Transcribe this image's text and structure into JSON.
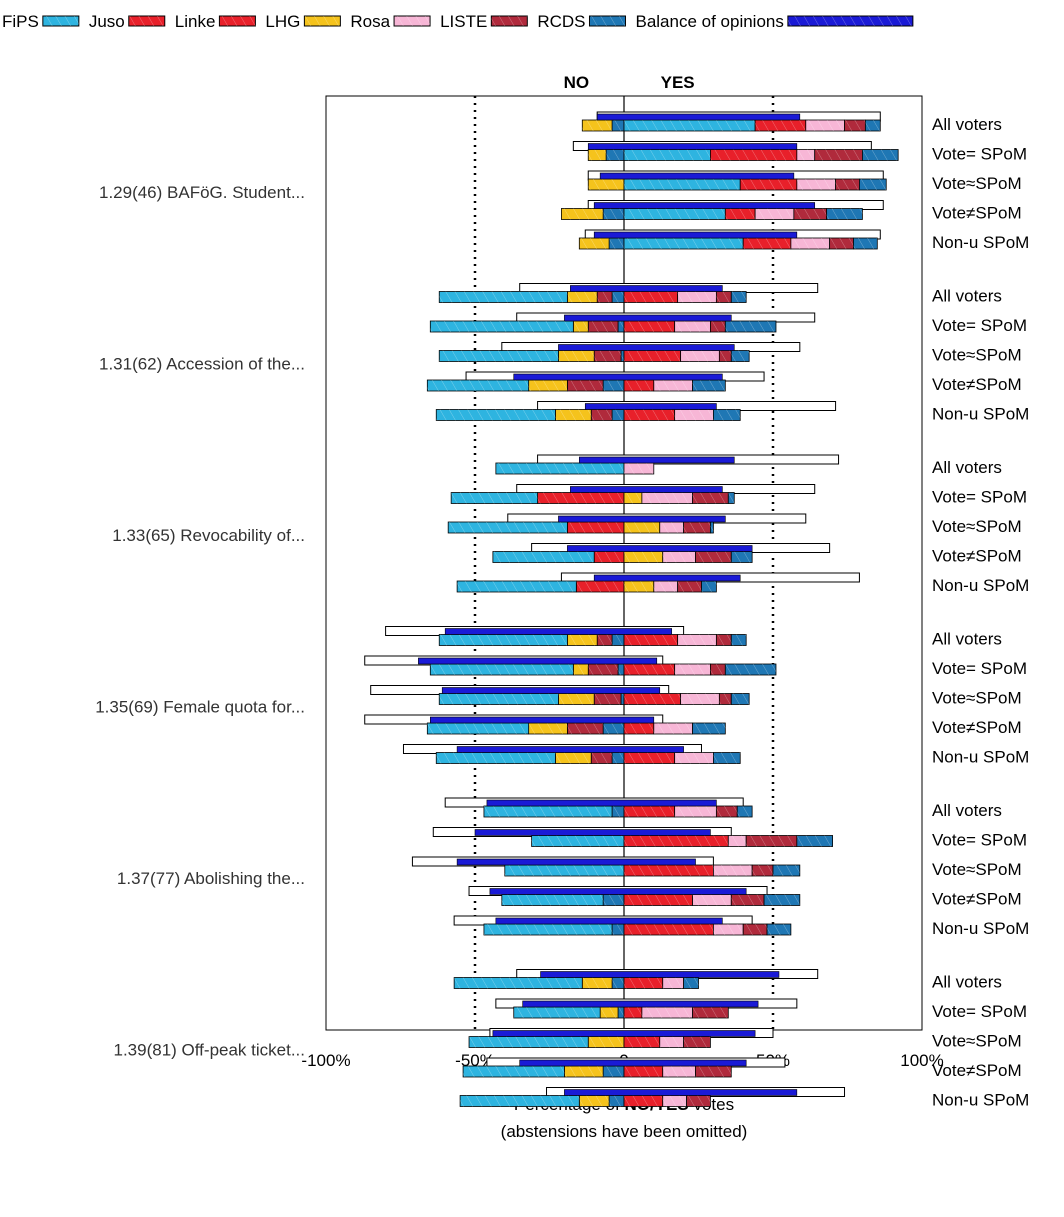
{
  "legend": [
    {
      "label": "FiPS",
      "color": "#2eb4e0"
    },
    {
      "label": "Juso",
      "color": "#e8202a"
    },
    {
      "label": "Linke",
      "color": "#e8202a"
    },
    {
      "label": "LHG",
      "color": "#f5c31c"
    },
    {
      "label": "Rosa",
      "color": "#f7b6d6"
    },
    {
      "label": "LISTE",
      "color": "#b02a3c"
    },
    {
      "label": "RCDS",
      "color": "#1f77b4"
    },
    {
      "label": "Balance of opinions",
      "color": "#1a1ad6"
    }
  ],
  "chart_data": {
    "type": "bar",
    "orientation": "horizontal-diverging-stacked",
    "x_label_pre": "Percentage of",
    "x_label_bold": "NO/YES",
    "x_label_post": "votes",
    "x_sublabel": "(abstensions have been omitted)",
    "no_label": "NO",
    "yes_label": "YES",
    "xlim": [
      -100,
      100
    ],
    "x_ticks": [
      {
        "value": -100,
        "label": "-100%"
      },
      {
        "value": -50,
        "label": "-50%"
      },
      {
        "value": 0,
        "label": "0"
      },
      {
        "value": 50,
        "label": "50%"
      },
      {
        "value": 100,
        "label": "100%"
      }
    ],
    "reference_lines": [
      -50,
      50
    ],
    "group_order": [
      "FiPS",
      "Juso",
      "Linke",
      "LHG",
      "Rosa",
      "LISTE",
      "RCDS"
    ],
    "questions": [
      {
        "label": "1.29(46) BAFöG. Student...",
        "rows": [
          {
            "label": "All voters",
            "no": [
              0,
              0,
              0,
              10,
              0,
              0,
              4
            ],
            "yes": [
              44,
              0,
              17,
              0,
              0,
              0,
              0
            ],
            "yes_b": [
              0,
              0,
              0,
              0,
              0,
              0,
              0
            ],
            "yes_c": [
              0,
              0,
              0,
              0,
              0,
              0,
              0
            ],
            "yes_full": [
              44,
              0,
              17,
              0,
              13,
              7,
              5
            ],
            "outline": [
              -9,
              86
            ],
            "balance": [
              -9,
              59
            ]
          },
          {
            "label": "Vote= SPoM",
            "no": [
              0,
              0,
              0,
              6,
              0,
              0,
              6
            ],
            "yes_full": [
              29,
              0,
              29,
              0,
              6,
              16,
              12
            ],
            "outline": [
              -17,
              83
            ],
            "balance": [
              -12,
              58
            ]
          },
          {
            "label": "Vote≈SPoM",
            "no": [
              0,
              0,
              0,
              12,
              0,
              0,
              0
            ],
            "yes_full": [
              39,
              0,
              19,
              0,
              13,
              8,
              9
            ],
            "outline": [
              -12,
              87
            ],
            "balance": [
              -8,
              57
            ]
          },
          {
            "label": "Vote≠SPoM",
            "no": [
              0,
              0,
              0,
              14,
              0,
              0,
              7
            ],
            "yes_full": [
              34,
              0,
              10,
              0,
              13,
              11,
              12
            ],
            "outline": [
              -12,
              87
            ],
            "balance": [
              -10,
              64
            ]
          },
          {
            "label": "Non-u SPoM",
            "no": [
              0,
              0,
              0,
              10,
              0,
              0,
              5
            ],
            "yes_full": [
              40,
              0,
              16,
              0,
              13,
              8,
              8
            ],
            "outline": [
              -13,
              86
            ],
            "balance": [
              -10,
              58
            ]
          }
        ]
      },
      {
        "label": "1.31(62) Accession of the...",
        "rows": [
          {
            "label": "All voters",
            "no": [
              43,
              0,
              0,
              10,
              0,
              5,
              4
            ],
            "yes_full": [
              0,
              0,
              18,
              0,
              13,
              5,
              5
            ],
            "outline": [
              -35,
              65
            ],
            "balance": [
              -18,
              33
            ]
          },
          {
            "label": "Vote= SPoM",
            "no": [
              48,
              0,
              0,
              5,
              0,
              10,
              2
            ],
            "yes_full": [
              0,
              0,
              17,
              0,
              12,
              5,
              17
            ],
            "outline": [
              -36,
              64
            ],
            "balance": [
              -20,
              36
            ]
          },
          {
            "label": "Vote≈SPoM",
            "no": [
              40,
              0,
              0,
              12,
              0,
              9,
              1
            ],
            "yes_full": [
              0,
              0,
              19,
              0,
              13,
              4,
              6
            ],
            "outline": [
              -41,
              59
            ],
            "balance": [
              -22,
              37
            ]
          },
          {
            "label": "Vote≠SPoM",
            "no": [
              34,
              0,
              0,
              13,
              0,
              12,
              7
            ],
            "yes_full": [
              0,
              0,
              10,
              0,
              13,
              0,
              11
            ],
            "outline": [
              -53,
              47
            ],
            "balance": [
              -37,
              33
            ]
          },
          {
            "label": "Non-u SPoM",
            "no": [
              40,
              0,
              0,
              12,
              0,
              7,
              4
            ],
            "yes_full": [
              0,
              0,
              17,
              0,
              13,
              0,
              9
            ],
            "outline": [
              -29,
              71
            ],
            "balance": [
              -13,
              31
            ]
          }
        ]
      },
      {
        "label": "1.33(65) Revocability of...",
        "rows": [
          {
            "label": "All voters",
            "no": [
              43,
              0,
              0,
              0,
              0,
              0,
              0
            ],
            "yes_full": [
              0,
              0,
              0,
              0,
              10,
              0,
              0
            ],
            "yes_b": [
              0,
              0,
              0,
              10,
              6,
              5,
              3
            ],
            "outline": [
              -29,
              72
            ],
            "balance": [
              -15,
              37
            ]
          },
          {
            "label": "Vote= SPoM",
            "no": [
              29,
              0,
              29,
              0,
              0,
              0,
              0
            ],
            "yes_full": [
              0,
              0,
              0,
              6,
              17,
              12,
              2
            ],
            "outline": [
              -36,
              64
            ],
            "balance": [
              -18,
              33
            ]
          },
          {
            "label": "Vote≈SPoM",
            "no": [
              40,
              0,
              19,
              0,
              0,
              0,
              0
            ],
            "yes_full": [
              0,
              0,
              0,
              12,
              8,
              9,
              1
            ],
            "outline": [
              -39,
              61
            ],
            "balance": [
              -22,
              34
            ]
          },
          {
            "label": "Vote≠SPoM",
            "no": [
              34,
              0,
              10,
              0,
              0,
              0,
              0
            ],
            "yes_full": [
              0,
              0,
              0,
              13,
              11,
              12,
              7
            ],
            "outline": [
              -31,
              69
            ],
            "balance": [
              -19,
              43
            ]
          },
          {
            "label": "Non-u SPoM",
            "no": [
              40,
              0,
              16,
              0,
              0,
              0,
              0
            ],
            "yes_full": [
              0,
              0,
              0,
              10,
              8,
              8,
              5
            ],
            "outline": [
              -21,
              79
            ],
            "balance": [
              -10,
              39
            ]
          }
        ]
      },
      {
        "label": "1.35(69) Female quota for...",
        "rows": [
          {
            "label": "All voters",
            "no": [
              43,
              0,
              0,
              10,
              0,
              5,
              4
            ],
            "yes_full": [
              0,
              0,
              18,
              0,
              13,
              5,
              5
            ],
            "outline": [
              -80,
              20
            ],
            "balance": [
              -60,
              16
            ]
          },
          {
            "label": "Vote= SPoM",
            "no": [
              48,
              0,
              0,
              5,
              0,
              10,
              2
            ],
            "yes_full": [
              0,
              0,
              17,
              0,
              12,
              5,
              17
            ],
            "outline": [
              -87,
              13
            ],
            "balance": [
              -69,
              11
            ]
          },
          {
            "label": "Vote≈SPoM",
            "no": [
              40,
              0,
              0,
              12,
              0,
              9,
              1
            ],
            "yes_full": [
              0,
              0,
              19,
              0,
              13,
              4,
              6
            ],
            "outline": [
              -85,
              15
            ],
            "balance": [
              -61,
              12
            ]
          },
          {
            "label": "Vote≠SPoM",
            "no": [
              34,
              0,
              0,
              13,
              0,
              12,
              7
            ],
            "yes_full": [
              0,
              0,
              10,
              0,
              13,
              0,
              11
            ],
            "outline": [
              -87,
              13
            ],
            "balance": [
              -65,
              10
            ]
          },
          {
            "label": "Non-u SPoM",
            "no": [
              40,
              0,
              0,
              12,
              0,
              7,
              4
            ],
            "yes_full": [
              0,
              0,
              17,
              0,
              13,
              0,
              9
            ],
            "outline": [
              -74,
              26
            ],
            "balance": [
              -56,
              20
            ]
          }
        ]
      },
      {
        "label": "1.37(77) Abolishing the...",
        "rows": [
          {
            "label": "All voters",
            "no": [
              43,
              0,
              0,
              0,
              0,
              0,
              4
            ],
            "yes_full": [
              0,
              0,
              17,
              0,
              14,
              7,
              5
            ],
            "yes_lhg": 10,
            "outline": [
              -60,
              40
            ],
            "balance": [
              -46,
              31
            ]
          },
          {
            "label": "Vote= SPoM",
            "no": [
              31,
              0,
              0,
              0,
              0,
              0,
              0
            ],
            "yes_full": [
              0,
              0,
              35,
              0,
              6,
              17,
              12
            ],
            "outline": [
              -64,
              36
            ],
            "balance": [
              -50,
              29
            ]
          },
          {
            "label": "Vote≈SPoM",
            "no": [
              40,
              0,
              0,
              0,
              0,
              0,
              0
            ],
            "yes_full": [
              0,
              0,
              30,
              0,
              13,
              7,
              9
            ],
            "outline": [
              -71,
              30
            ],
            "balance": [
              -56,
              24
            ]
          },
          {
            "label": "Vote≠SPoM",
            "no": [
              34,
              0,
              0,
              0,
              0,
              0,
              7
            ],
            "yes_full": [
              0,
              0,
              23,
              0,
              13,
              11,
              12
            ],
            "outline": [
              -52,
              48
            ],
            "balance": [
              -45,
              41
            ]
          },
          {
            "label": "Non-u SPoM",
            "no": [
              43,
              0,
              0,
              0,
              0,
              0,
              4
            ],
            "yes_full": [
              0,
              0,
              30,
              0,
              10,
              8,
              8
            ],
            "outline": [
              -57,
              43
            ],
            "balance": [
              -43,
              33
            ]
          }
        ]
      },
      {
        "label": "1.39(81) Off-peak ticket...",
        "rows": [
          {
            "label": "All voters",
            "no": [
              43,
              0,
              0,
              10,
              0,
              0,
              4
            ],
            "yes_full": [
              0,
              0,
              13,
              0,
              7,
              0,
              5
            ],
            "outline": [
              -36,
              65
            ],
            "balance": [
              -28,
              52
            ]
          },
          {
            "label": "Vote= SPoM",
            "no": [
              29,
              0,
              0,
              6,
              0,
              0,
              2
            ],
            "yes_full": [
              0,
              0,
              6,
              0,
              17,
              12,
              0
            ],
            "outline": [
              -43,
              58
            ],
            "balance": [
              -34,
              45
            ]
          },
          {
            "label": "Vote≈SPoM",
            "no": [
              40,
              0,
              0,
              12,
              0,
              0,
              0
            ],
            "yes_full": [
              0,
              0,
              12,
              0,
              8,
              9,
              0
            ],
            "outline": [
              -45,
              50
            ],
            "balance": [
              -44,
              44
            ]
          },
          {
            "label": "Vote≠SPoM",
            "no": [
              34,
              0,
              0,
              13,
              0,
              0,
              7
            ],
            "yes_full": [
              0,
              0,
              13,
              0,
              11,
              12,
              0
            ],
            "outline": [
              -46,
              54
            ],
            "balance": [
              -35,
              41
            ]
          },
          {
            "label": "Non-u SPoM",
            "no": [
              40,
              0,
              0,
              10,
              0,
              0,
              5
            ],
            "yes_full": [
              0,
              0,
              13,
              0,
              8,
              8,
              0
            ],
            "outline": [
              -26,
              74
            ],
            "balance": [
              -20,
              58
            ]
          }
        ]
      }
    ]
  }
}
